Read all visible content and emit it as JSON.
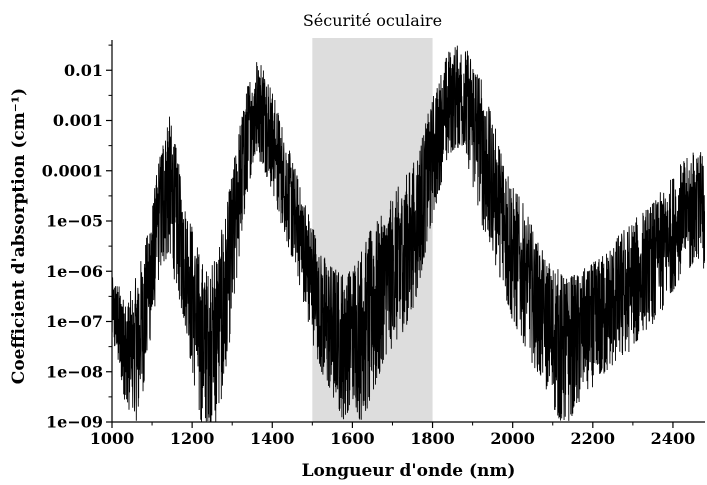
{
  "chart_data": {
    "type": "line",
    "xlabel": "Longueur d'onde (nm)",
    "ylabel": "Coefficient d'absorption (cm⁻¹)",
    "xlim": [
      1000,
      2480
    ],
    "ylim": [
      1e-09,
      0.04
    ],
    "y_scale": "log",
    "grid": false,
    "x_ticks": [
      1000,
      1200,
      1400,
      1600,
      1800,
      2000,
      2200,
      2400
    ],
    "y_ticks": [
      {
        "value": 1e-09,
        "label": "1e−09"
      },
      {
        "value": 1e-08,
        "label": "1e−08"
      },
      {
        "value": 1e-07,
        "label": "1e−07"
      },
      {
        "value": 1e-06,
        "label": "1e−06"
      },
      {
        "value": 1e-05,
        "label": "1e−05"
      },
      {
        "value": 0.0001,
        "label": "0.0001"
      },
      {
        "value": 0.001,
        "label": "0.001"
      },
      {
        "value": 0.01,
        "label": "0.01"
      }
    ],
    "highlight_band": {
      "x": [
        1500,
        1800
      ],
      "label": "Sécurité oculaire",
      "color": "#dddddd"
    },
    "series": [
      {
        "color": "#000000",
        "envelope": {
          "x": [
            1000,
            1020,
            1040,
            1060,
            1080,
            1100,
            1120,
            1140,
            1160,
            1180,
            1200,
            1220,
            1240,
            1260,
            1280,
            1300,
            1320,
            1340,
            1360,
            1380,
            1400,
            1420,
            1440,
            1460,
            1480,
            1500,
            1520,
            1540,
            1560,
            1580,
            1600,
            1620,
            1640,
            1660,
            1680,
            1700,
            1720,
            1740,
            1760,
            1780,
            1800,
            1820,
            1840,
            1860,
            1880,
            1900,
            1920,
            1940,
            1960,
            1980,
            2000,
            2020,
            2040,
            2060,
            2080,
            2100,
            2120,
            2140,
            2160,
            2180,
            2200,
            2220,
            2240,
            2260,
            2280,
            2300,
            2320,
            2340,
            2360,
            2380,
            2400,
            2420,
            2440,
            2460,
            2480
          ],
          "max": [
            8e-07,
            5e-07,
            3e-07,
            8e-07,
            3e-06,
            2e-05,
            0.0003,
            0.0018,
            0.0003,
            3e-05,
            1e-05,
            2e-06,
            1e-06,
            3e-06,
            1e-05,
            0.0001,
            0.001,
            0.006,
            0.02,
            0.015,
            0.004,
            0.0012,
            0.0003,
            0.0001,
            3e-05,
            1e-05,
            3e-06,
            1.5e-06,
            1.2e-06,
            1e-06,
            1.5e-06,
            3e-06,
            6e-06,
            1e-05,
            1.5e-05,
            3e-05,
            6e-05,
            0.0001,
            0.0002,
            0.0008,
            0.003,
            0.01,
            0.025,
            0.035,
            0.03,
            0.02,
            0.008,
            0.002,
            0.0006,
            0.0002,
            5e-05,
            3e-05,
            1.2e-05,
            5e-06,
            2e-06,
            1.5e-06,
            1e-06,
            8e-07,
            1e-06,
            1.2e-06,
            1.5e-06,
            2e-06,
            3e-06,
            5e-06,
            8e-06,
            1e-05,
            1.5e-05,
            2e-05,
            3e-05,
            5e-05,
            8e-05,
            0.00015,
            0.0002,
            0.0003,
            0.0002
          ],
          "min": [
            4e-08,
            1e-08,
            1e-09,
            1e-09,
            5e-09,
            8e-08,
            1e-06,
            2e-06,
            5e-07,
            1e-07,
            1e-08,
            1e-09,
            1e-09,
            1e-09,
            5e-09,
            1e-07,
            3e-06,
            5e-05,
            0.0002,
            0.0001,
            4e-05,
            1e-05,
            3e-06,
            1e-06,
            2e-07,
            4e-08,
            1e-08,
            5e-09,
            2e-09,
            1e-09,
            3e-09,
            1e-09,
            2e-09,
            5e-09,
            2e-08,
            3e-08,
            5e-08,
            1e-07,
            3e-07,
            2e-06,
            1e-05,
            5e-05,
            0.0002,
            0.0003,
            0.0002,
            5e-05,
            1e-05,
            3e-06,
            1e-06,
            3e-07,
            1e-07,
            5e-08,
            2e-08,
            1e-08,
            5e-09,
            2e-09,
            1e-09,
            1e-09,
            2e-09,
            3e-09,
            5e-09,
            8e-09,
            1e-08,
            1.5e-08,
            2e-08,
            3e-08,
            5e-08,
            8e-08,
            1e-07,
            2e-07,
            4e-07,
            8e-07,
            1e-06,
            2e-06,
            1e-06
          ]
        }
      }
    ]
  }
}
